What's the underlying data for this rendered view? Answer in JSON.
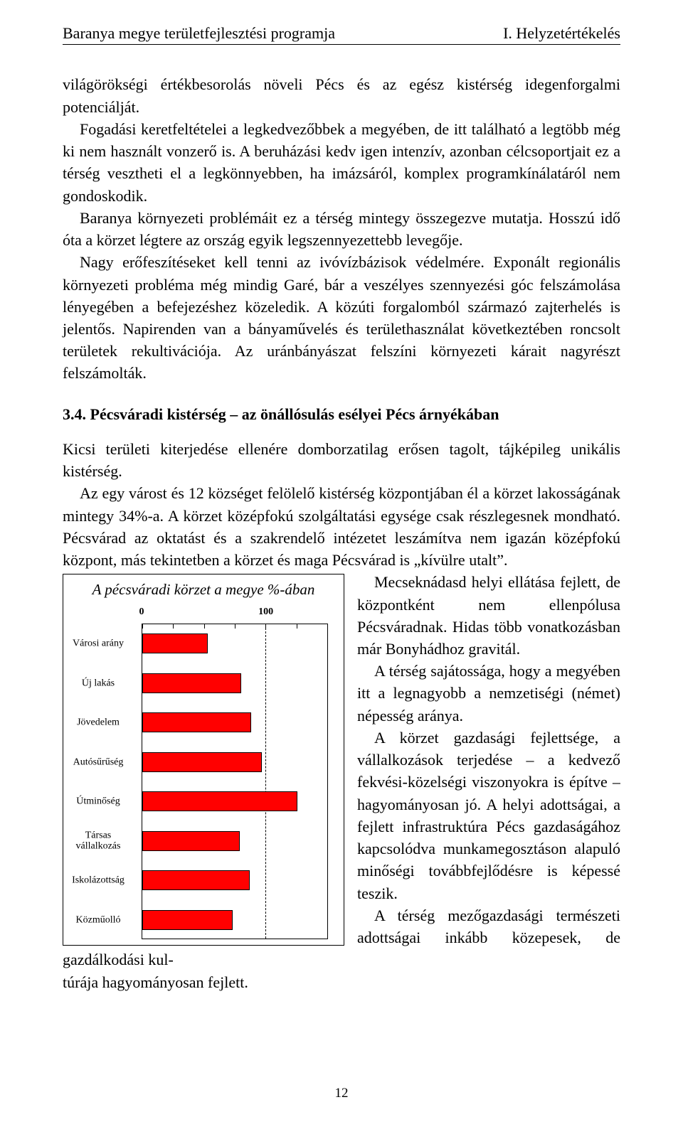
{
  "header": {
    "left": "Baranya megye területfejlesztési programja",
    "right": "I. Helyzetértékelés"
  },
  "para1": "világörökségi értékbesorolás növeli Pécs és az egész kistérség idegenforgalmi potenciálját.",
  "para2": "Fogadási keretfeltételei a legkedvezőbbek a megyében, de itt található a legtöbb még ki nem használt vonzerő is. A beruházási kedv igen intenzív, azonban célcsoportjait ez a térség vesztheti el a legkönnyebben, ha imázsáról, komplex programkínálatáról nem gondoskodik.",
  "para3": "Baranya környezeti problémáit ez a térség mintegy összegezve mutatja. Hosszú idő óta a körzet légtere az ország egyik legszennyezettebb levegője.",
  "para4": "Nagy erőfeszítéseket kell tenni az ivóvízbázisok védelmére. Exponált regionális környezeti probléma még mindig Garé, bár a  veszélyes szennyezési góc felszámolása lényegében a befejezéshez közeledik. A közúti forgalomból származó zajterhelés is jelentős. Napirenden van a bányaművelés és területhasználat következtében roncsolt területek rekultivációja. Az uránbányászat felszíni környezeti kárait nagyrészt felszámolták.",
  "sectionHeading": "3.4. Pécsváradi kistérség – az önállósulás esélyei Pécs árnyékában",
  "para5": "Kicsi területi kiterjedése ellenére domborzatilag erősen tagolt, tájképileg unikális kistérség.",
  "para6": "Az egy várost és 12 községet felölelő kistérség központjában él a körzet lakosságának  mintegy 34%-a. A körzet középfokú szolgáltatási egysége csak részlegesnek mondható. Pécsvárad az oktatást és a szakrendelő intézetet leszámítva nem igazán középfokú központ, más tekintetben a körzet és maga Pécsvárad is „kívülre utalt”.",
  "right1": "Mecseknádasd helyi ellátása fejlett, de központként nem ellenpólusa Pécsváradnak. Hidas több vonatkozásban már Bonyhádhoz gravitál.",
  "right2": "A térség sajátossága, hogy a megyében itt a legnagyobb a nemzetiségi (német) népesség aránya.",
  "right3": "A körzet gazdasági fejlettsége, a vállalkozások terjedése – a kedvező fekvési-közelségi viszonyokra is építve – hagyományosan jó. A helyi adottságai, a fejlett infrastruktúra Pécs gazdaságához kapcsolódva munkamegosztáson alapuló minőségi továbbfejlődésre is képessé teszik.",
  "right4": "A térség mezőgazdasági természeti adottságai inkább közepesek, de gazdálkodási kul-",
  "afterChart": "túrája hagyományosan fejlett.",
  "pageNumber": "12",
  "chart": {
    "title": "A pécsváradi körzet a megye %-ában",
    "type": "bar-horizontal",
    "xmin": 0,
    "xmax": 150,
    "tick_labels": [
      {
        "pos": 0,
        "text": "0"
      },
      {
        "pos": 100,
        "text": "100"
      }
    ],
    "ticks_minor": [
      25,
      50,
      75,
      125
    ],
    "gridline_at": 100,
    "bars": [
      {
        "label": "Városi arány",
        "value": 53
      },
      {
        "label": "Új lakás",
        "value": 80
      },
      {
        "label": "Jövedelem",
        "value": 88
      },
      {
        "label": "Autósűrűség",
        "value": 97
      },
      {
        "label": "Útminőség",
        "value": 126
      },
      {
        "label": "Társas\nvállalkozás",
        "value": 79
      },
      {
        "label": "Iskolázottság",
        "value": 87
      },
      {
        "label": "Közműolló",
        "value": 73
      }
    ],
    "bar_color": "#ff0000",
    "border_color": "#000000",
    "label_fontsize": 14
  }
}
